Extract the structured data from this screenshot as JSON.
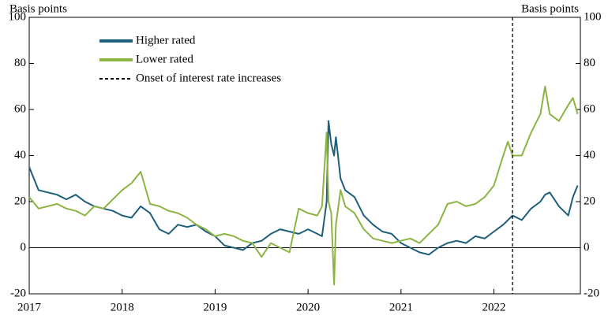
{
  "chart_data": {
    "type": "line",
    "y_label": "Basis points",
    "y2_label": "Basis points",
    "x": [
      2017,
      2017.1,
      2017.2,
      2017.3,
      2017.4,
      2017.5,
      2017.6,
      2017.7,
      2017.8,
      2017.9,
      2018,
      2018.1,
      2018.2,
      2018.3,
      2018.4,
      2018.5,
      2018.6,
      2018.7,
      2018.8,
      2018.9,
      2019,
      2019.1,
      2019.2,
      2019.3,
      2019.4,
      2019.5,
      2019.6,
      2019.7,
      2019.8,
      2019.9,
      2020,
      2020.1,
      2020.15,
      2020.2,
      2020.22,
      2020.25,
      2020.28,
      2020.3,
      2020.35,
      2020.4,
      2020.5,
      2020.6,
      2020.7,
      2020.8,
      2020.9,
      2021,
      2021.1,
      2021.2,
      2021.3,
      2021.4,
      2021.5,
      2021.6,
      2021.7,
      2021.8,
      2021.9,
      2022,
      2022.1,
      2022.15,
      2022.2,
      2022.3,
      2022.4,
      2022.5,
      2022.55,
      2022.6,
      2022.7,
      2022.8,
      2022.85,
      2022.9
    ],
    "series": [
      {
        "name": "Higher rated",
        "color": "#1d5e7c",
        "values": [
          35,
          25,
          24,
          23,
          21,
          23,
          20,
          18,
          17,
          16,
          14,
          13,
          18,
          15,
          8,
          6,
          10,
          9,
          10,
          7,
          5,
          1,
          0,
          -1,
          2,
          3,
          6,
          8,
          7,
          6,
          8,
          6,
          5,
          20,
          55,
          45,
          40,
          48,
          30,
          25,
          22,
          14,
          10,
          7,
          6,
          2,
          0,
          -2,
          -3,
          0,
          2,
          3,
          2,
          5,
          4,
          7,
          10,
          12,
          14,
          12,
          17,
          20,
          23,
          24,
          18,
          14,
          22,
          27
        ]
      },
      {
        "name": "Lower rated",
        "color": "#8cb443",
        "values": [
          22,
          17,
          18,
          19,
          17,
          16,
          14,
          18,
          17,
          21,
          25,
          28,
          33,
          19,
          18,
          16,
          15,
          13,
          10,
          8,
          5,
          6,
          5,
          3,
          2,
          -4,
          2,
          0,
          -2,
          17,
          15,
          14,
          18,
          50,
          20,
          15,
          -16,
          10,
          25,
          18,
          15,
          8,
          4,
          3,
          2,
          3,
          4,
          2,
          6,
          10,
          19,
          20,
          18,
          19,
          22,
          27,
          40,
          46,
          40,
          40,
          50,
          58,
          70,
          58,
          55,
          62,
          65,
          58
        ]
      }
    ],
    "vline": {
      "x": 2022.2,
      "label": "Onset of interest rate increases"
    },
    "xlim": [
      2017,
      2022.93
    ],
    "xticks": [
      2017,
      2018,
      2019,
      2020,
      2021,
      2022
    ],
    "ylim": [
      -20,
      100
    ],
    "yticks": [
      -20,
      0,
      20,
      40,
      60,
      80,
      100
    ],
    "y2lim": [
      -20,
      100
    ],
    "y2ticks": [
      -20,
      0,
      20,
      40,
      60,
      80,
      100
    ]
  }
}
